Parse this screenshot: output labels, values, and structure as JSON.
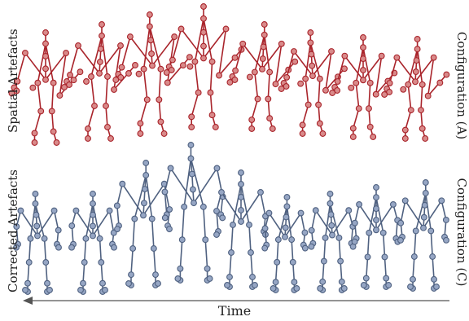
{
  "labels": {
    "left_top": "Spatial Artefacts",
    "left_bottom": "Corrected Artefacts",
    "right_top": "Configuration (A)",
    "right_bottom": "Configuration (C)",
    "time": "Time"
  },
  "colors": {
    "top_row": "#a9242b",
    "top_joint_fill": "#d98a8a",
    "bottom_row": "#4f6180",
    "bottom_joint_fill": "#96a6c4",
    "arrow": "#555555"
  },
  "rows": [
    {
      "name": "spatial-artefacts",
      "figure_count": 8
    },
    {
      "name": "corrected-artefacts",
      "figure_count": 9
    }
  ]
}
